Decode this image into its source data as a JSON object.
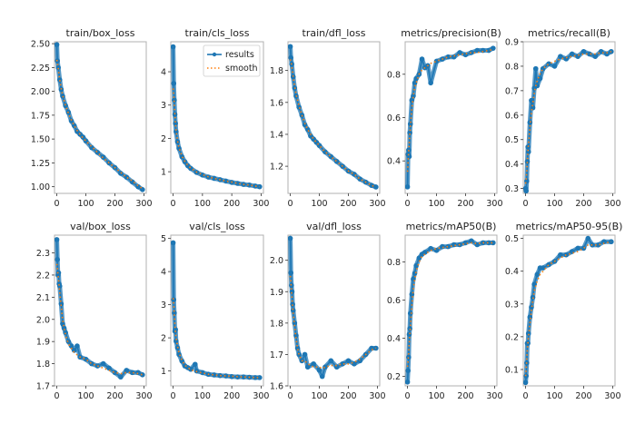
{
  "figure": {
    "legend": {
      "entries": [
        "results",
        "smooth"
      ],
      "placement": "upper-right of train/cls_loss panel"
    },
    "colors": {
      "results": "#1f77b4",
      "smooth": "#ff7f0e",
      "frame": "#b0b0b0",
      "text": "#222222"
    }
  },
  "chart_data": [
    {
      "type": "line",
      "title": "train/box_loss",
      "xlim": [
        -8,
        308
      ],
      "ylim": [
        0.93,
        2.52
      ],
      "xticks": [
        "0",
        "100",
        "200",
        "300"
      ],
      "yticks": [
        "1.00",
        "1.25",
        "1.50",
        "1.75",
        "2.00",
        "2.25",
        "2.50"
      ],
      "ytick_values": [
        1.0,
        1.25,
        1.5,
        1.75,
        2.0,
        2.25,
        2.5
      ],
      "x": [
        0,
        2,
        5,
        10,
        15,
        20,
        30,
        40,
        50,
        60,
        70,
        80,
        90,
        100,
        120,
        140,
        160,
        180,
        200,
        220,
        240,
        260,
        280,
        295
      ],
      "series": [
        {
          "name": "results",
          "values": [
            2.49,
            2.32,
            2.25,
            2.12,
            2.02,
            1.95,
            1.85,
            1.78,
            1.69,
            1.64,
            1.58,
            1.55,
            1.52,
            1.48,
            1.41,
            1.36,
            1.31,
            1.25,
            1.2,
            1.14,
            1.1,
            1.05,
            1.0,
            0.97
          ]
        },
        {
          "name": "smooth",
          "values": [
            2.33,
            2.3,
            2.24,
            2.12,
            2.03,
            1.96,
            1.85,
            1.77,
            1.7,
            1.64,
            1.59,
            1.55,
            1.51,
            1.48,
            1.42,
            1.36,
            1.3,
            1.25,
            1.2,
            1.15,
            1.1,
            1.06,
            1.01,
            0.98
          ]
        }
      ]
    },
    {
      "type": "line",
      "title": "train/cls_loss",
      "xlim": [
        -8,
        308
      ],
      "ylim": [
        0.35,
        4.9
      ],
      "xticks": [
        "0",
        "100",
        "200",
        "300"
      ],
      "yticks": [
        "1",
        "2",
        "3",
        "4"
      ],
      "ytick_values": [
        1,
        2,
        3,
        4
      ],
      "x": [
        0,
        2,
        4,
        6,
        8,
        10,
        15,
        20,
        30,
        40,
        50,
        60,
        80,
        100,
        120,
        140,
        160,
        180,
        200,
        220,
        240,
        260,
        280,
        295
      ],
      "series": [
        {
          "name": "results",
          "values": [
            4.75,
            3.65,
            3.15,
            2.72,
            2.45,
            2.2,
            1.9,
            1.7,
            1.45,
            1.3,
            1.18,
            1.1,
            0.98,
            0.9,
            0.84,
            0.8,
            0.76,
            0.72,
            0.68,
            0.65,
            0.62,
            0.6,
            0.57,
            0.55
          ]
        },
        {
          "name": "smooth",
          "values": [
            3.5,
            3.3,
            3.0,
            2.7,
            2.45,
            2.25,
            1.92,
            1.72,
            1.47,
            1.31,
            1.19,
            1.11,
            0.99,
            0.91,
            0.85,
            0.8,
            0.76,
            0.72,
            0.69,
            0.65,
            0.62,
            0.6,
            0.57,
            0.55
          ]
        }
      ]
    },
    {
      "type": "line",
      "title": "train/dfl_loss",
      "xlim": [
        -8,
        308
      ],
      "ylim": [
        1.03,
        1.98
      ],
      "xticks": [
        "0",
        "100",
        "200",
        "300"
      ],
      "yticks": [
        "1.2",
        "1.4",
        "1.6",
        "1.8"
      ],
      "ytick_values": [
        1.2,
        1.4,
        1.6,
        1.8
      ],
      "x": [
        0,
        2,
        5,
        10,
        15,
        20,
        30,
        40,
        50,
        60,
        70,
        80,
        90,
        100,
        120,
        140,
        160,
        180,
        200,
        220,
        240,
        260,
        280,
        295
      ],
      "series": [
        {
          "name": "results",
          "values": [
            1.95,
            1.88,
            1.84,
            1.76,
            1.69,
            1.64,
            1.57,
            1.52,
            1.46,
            1.43,
            1.39,
            1.37,
            1.35,
            1.33,
            1.29,
            1.26,
            1.23,
            1.2,
            1.17,
            1.15,
            1.12,
            1.1,
            1.08,
            1.07
          ]
        },
        {
          "name": "smooth",
          "values": [
            1.87,
            1.86,
            1.83,
            1.76,
            1.7,
            1.65,
            1.58,
            1.52,
            1.47,
            1.43,
            1.4,
            1.37,
            1.35,
            1.33,
            1.29,
            1.26,
            1.23,
            1.2,
            1.17,
            1.15,
            1.12,
            1.1,
            1.08,
            1.07
          ]
        }
      ]
    },
    {
      "type": "line",
      "title": "metrics/precision(B)",
      "xlim": [
        -8,
        308
      ],
      "ylim": [
        0.25,
        0.95
      ],
      "xticks": [
        "0",
        "100",
        "200",
        "300"
      ],
      "yticks": [
        "0.4",
        "0.6",
        "0.8"
      ],
      "ytick_values": [
        0.4,
        0.6,
        0.8
      ],
      "x": [
        0,
        2,
        4,
        6,
        8,
        10,
        15,
        20,
        25,
        30,
        40,
        50,
        60,
        70,
        80,
        100,
        120,
        140,
        160,
        180,
        200,
        220,
        240,
        260,
        280,
        295
      ],
      "series": [
        {
          "name": "results",
          "values": [
            0.28,
            0.43,
            0.45,
            0.42,
            0.53,
            0.57,
            0.68,
            0.7,
            0.76,
            0.78,
            0.8,
            0.87,
            0.83,
            0.84,
            0.76,
            0.86,
            0.87,
            0.88,
            0.88,
            0.9,
            0.89,
            0.9,
            0.91,
            0.91,
            0.91,
            0.92
          ]
        },
        {
          "name": "smooth",
          "values": [
            0.35,
            0.39,
            0.44,
            0.48,
            0.52,
            0.56,
            0.64,
            0.7,
            0.74,
            0.76,
            0.8,
            0.82,
            0.83,
            0.84,
            0.85,
            0.86,
            0.87,
            0.88,
            0.885,
            0.89,
            0.895,
            0.9,
            0.9,
            0.905,
            0.91,
            0.915
          ]
        }
      ]
    },
    {
      "type": "line",
      "title": "metrics/recall(B)",
      "xlim": [
        -8,
        308
      ],
      "ylim": [
        0.28,
        0.9
      ],
      "xticks": [
        "0",
        "100",
        "200",
        "300"
      ],
      "yticks": [
        "0.3",
        "0.4",
        "0.5",
        "0.6",
        "0.7",
        "0.8",
        "0.9"
      ],
      "ytick_values": [
        0.3,
        0.4,
        0.5,
        0.6,
        0.7,
        0.8,
        0.9
      ],
      "x": [
        0,
        2,
        4,
        6,
        8,
        10,
        15,
        20,
        25,
        30,
        35,
        40,
        50,
        60,
        80,
        100,
        120,
        140,
        160,
        180,
        200,
        220,
        240,
        260,
        280,
        295
      ],
      "series": [
        {
          "name": "results",
          "values": [
            0.3,
            0.29,
            0.33,
            0.41,
            0.47,
            0.45,
            0.57,
            0.66,
            0.63,
            0.71,
            0.79,
            0.72,
            0.75,
            0.79,
            0.81,
            0.8,
            0.84,
            0.83,
            0.85,
            0.84,
            0.86,
            0.85,
            0.84,
            0.86,
            0.85,
            0.86
          ]
        },
        {
          "name": "smooth",
          "values": [
            0.32,
            0.34,
            0.37,
            0.41,
            0.45,
            0.48,
            0.55,
            0.61,
            0.65,
            0.69,
            0.72,
            0.74,
            0.77,
            0.79,
            0.81,
            0.82,
            0.83,
            0.835,
            0.84,
            0.845,
            0.85,
            0.85,
            0.85,
            0.855,
            0.855,
            0.86
          ]
        }
      ]
    },
    {
      "type": "line",
      "title": "val/box_loss",
      "xlim": [
        -8,
        308
      ],
      "ylim": [
        1.7,
        2.38
      ],
      "xticks": [
        "0",
        "100",
        "200",
        "300"
      ],
      "yticks": [
        "1.7",
        "1.8",
        "1.9",
        "2.0",
        "2.1",
        "2.2",
        "2.3"
      ],
      "ytick_values": [
        1.7,
        1.8,
        1.9,
        2.0,
        2.1,
        2.2,
        2.3
      ],
      "x": [
        0,
        2,
        4,
        6,
        8,
        10,
        15,
        20,
        25,
        30,
        40,
        50,
        60,
        70,
        80,
        100,
        120,
        140,
        160,
        180,
        200,
        220,
        240,
        260,
        280,
        295
      ],
      "series": [
        {
          "name": "results",
          "values": [
            2.36,
            2.27,
            2.2,
            2.21,
            2.16,
            2.15,
            2.07,
            1.98,
            1.96,
            1.94,
            1.9,
            1.88,
            1.86,
            1.88,
            1.83,
            1.82,
            1.8,
            1.79,
            1.8,
            1.78,
            1.76,
            1.74,
            1.77,
            1.76,
            1.76,
            1.75
          ]
        },
        {
          "name": "smooth",
          "values": [
            2.25,
            2.23,
            2.2,
            2.18,
            2.15,
            2.12,
            2.06,
            2.0,
            1.96,
            1.93,
            1.89,
            1.87,
            1.85,
            1.84,
            1.83,
            1.82,
            1.8,
            1.79,
            1.78,
            1.77,
            1.76,
            1.755,
            1.76,
            1.76,
            1.755,
            1.75
          ]
        }
      ]
    },
    {
      "type": "line",
      "title": "val/cls_loss",
      "xlim": [
        -8,
        308
      ],
      "ylim": [
        0.55,
        5.1
      ],
      "xticks": [
        "0",
        "100",
        "200",
        "300"
      ],
      "yticks": [
        "1",
        "2",
        "3",
        "4",
        "5"
      ],
      "ytick_values": [
        1,
        2,
        3,
        4,
        5
      ],
      "x": [
        0,
        2,
        4,
        6,
        8,
        10,
        15,
        20,
        30,
        40,
        50,
        60,
        75,
        80,
        100,
        120,
        140,
        160,
        180,
        200,
        220,
        240,
        260,
        280,
        295
      ],
      "series": [
        {
          "name": "results",
          "values": [
            4.87,
            3.15,
            2.75,
            2.2,
            2.25,
            1.9,
            1.7,
            1.5,
            1.3,
            1.15,
            1.1,
            1.05,
            1.2,
            1.0,
            0.95,
            0.9,
            0.88,
            0.86,
            0.85,
            0.83,
            0.82,
            0.82,
            0.81,
            0.8,
            0.8
          ]
        },
        {
          "name": "smooth",
          "values": [
            3.2,
            3.0,
            2.7,
            2.4,
            2.2,
            2.0,
            1.75,
            1.55,
            1.32,
            1.18,
            1.1,
            1.04,
            0.99,
            0.98,
            0.94,
            0.9,
            0.88,
            0.86,
            0.85,
            0.84,
            0.83,
            0.82,
            0.81,
            0.8,
            0.8
          ]
        }
      ]
    },
    {
      "type": "line",
      "title": "val/dfl_loss",
      "xlim": [
        -8,
        308
      ],
      "ylim": [
        1.6,
        2.08
      ],
      "xticks": [
        "0",
        "100",
        "200",
        "300"
      ],
      "yticks": [
        "1.6",
        "1.7",
        "1.8",
        "1.9",
        "2.0"
      ],
      "ytick_values": [
        1.6,
        1.7,
        1.8,
        1.9,
        2.0
      ],
      "x": [
        0,
        2,
        4,
        6,
        8,
        10,
        15,
        20,
        25,
        30,
        40,
        50,
        60,
        80,
        100,
        110,
        120,
        140,
        160,
        180,
        200,
        220,
        240,
        260,
        280,
        295
      ],
      "series": [
        {
          "name": "results",
          "values": [
            2.07,
            1.96,
            1.92,
            1.9,
            1.86,
            1.84,
            1.8,
            1.76,
            1.72,
            1.7,
            1.68,
            1.7,
            1.66,
            1.67,
            1.65,
            1.63,
            1.66,
            1.68,
            1.66,
            1.67,
            1.68,
            1.67,
            1.68,
            1.7,
            1.72,
            1.72
          ]
        },
        {
          "name": "smooth",
          "values": [
            1.95,
            1.93,
            1.9,
            1.88,
            1.85,
            1.83,
            1.79,
            1.75,
            1.72,
            1.7,
            1.68,
            1.68,
            1.67,
            1.66,
            1.66,
            1.655,
            1.66,
            1.665,
            1.665,
            1.67,
            1.67,
            1.675,
            1.685,
            1.7,
            1.715,
            1.72
          ]
        }
      ]
    },
    {
      "type": "line",
      "title": "metrics/mAP50(B)",
      "xlim": [
        -8,
        308
      ],
      "ylim": [
        0.15,
        0.94
      ],
      "xticks": [
        "0",
        "100",
        "200",
        "300"
      ],
      "yticks": [
        "0.2",
        "0.4",
        "0.6",
        "0.8"
      ],
      "ytick_values": [
        0.2,
        0.4,
        0.6,
        0.8
      ],
      "x": [
        0,
        2,
        4,
        6,
        8,
        10,
        15,
        20,
        25,
        30,
        40,
        50,
        60,
        80,
        100,
        120,
        140,
        160,
        180,
        200,
        220,
        240,
        260,
        280,
        295
      ],
      "series": [
        {
          "name": "results",
          "values": [
            0.17,
            0.23,
            0.3,
            0.42,
            0.45,
            0.53,
            0.63,
            0.71,
            0.74,
            0.78,
            0.82,
            0.84,
            0.85,
            0.87,
            0.86,
            0.88,
            0.88,
            0.89,
            0.89,
            0.9,
            0.91,
            0.89,
            0.9,
            0.9,
            0.9
          ]
        },
        {
          "name": "smooth",
          "values": [
            0.25,
            0.28,
            0.32,
            0.37,
            0.41,
            0.46,
            0.57,
            0.66,
            0.71,
            0.75,
            0.8,
            0.83,
            0.84,
            0.86,
            0.87,
            0.875,
            0.88,
            0.885,
            0.89,
            0.895,
            0.9,
            0.895,
            0.9,
            0.9,
            0.9
          ]
        }
      ]
    },
    {
      "type": "line",
      "title": "metrics/mAP50-95(B)",
      "xlim": [
        -8,
        308
      ],
      "ylim": [
        0.05,
        0.51
      ],
      "xticks": [
        "0",
        "100",
        "200",
        "300"
      ],
      "yticks": [
        "0.1",
        "0.2",
        "0.3",
        "0.4",
        "0.5"
      ],
      "ytick_values": [
        0.1,
        0.2,
        0.3,
        0.4,
        0.5
      ],
      "x": [
        0,
        2,
        4,
        6,
        8,
        10,
        15,
        20,
        25,
        30,
        40,
        50,
        60,
        80,
        100,
        120,
        140,
        160,
        180,
        200,
        215,
        230,
        250,
        270,
        295
      ],
      "series": [
        {
          "name": "results",
          "values": [
            0.06,
            0.08,
            0.12,
            0.18,
            0.18,
            0.21,
            0.26,
            0.29,
            0.32,
            0.36,
            0.39,
            0.41,
            0.41,
            0.42,
            0.43,
            0.45,
            0.45,
            0.46,
            0.47,
            0.47,
            0.5,
            0.48,
            0.48,
            0.49,
            0.49
          ]
        },
        {
          "name": "smooth",
          "values": [
            0.08,
            0.1,
            0.13,
            0.16,
            0.18,
            0.2,
            0.24,
            0.28,
            0.31,
            0.34,
            0.37,
            0.39,
            0.4,
            0.42,
            0.43,
            0.44,
            0.45,
            0.455,
            0.46,
            0.47,
            0.48,
            0.48,
            0.48,
            0.485,
            0.49
          ]
        }
      ]
    }
  ]
}
